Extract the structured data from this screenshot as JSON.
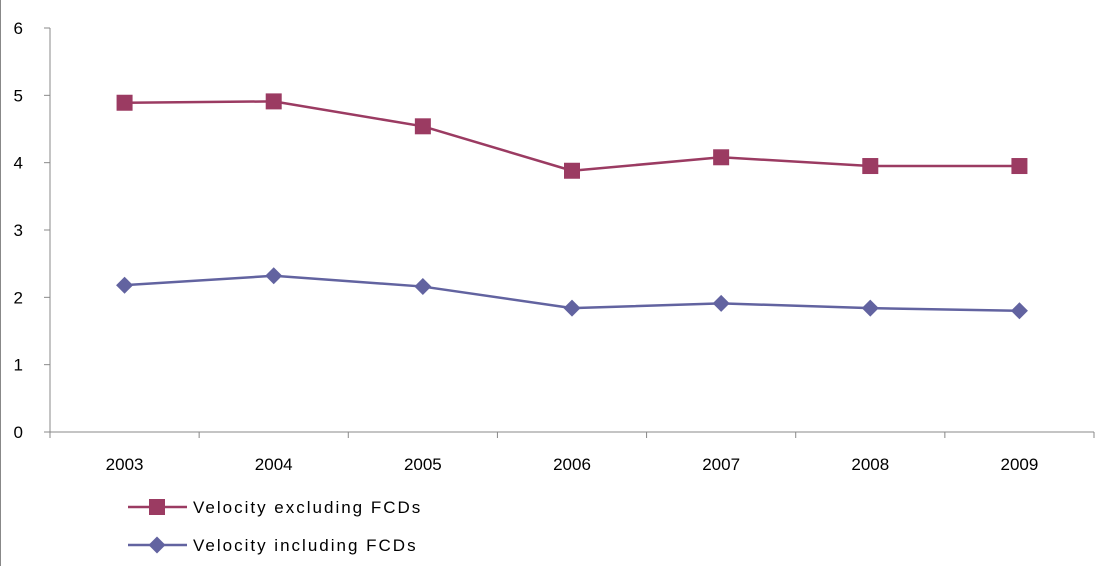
{
  "chart_data": {
    "type": "line",
    "categories": [
      "2003",
      "2004",
      "2005",
      "2006",
      "2007",
      "2008",
      "2009"
    ],
    "ylim": [
      0,
      6
    ],
    "yticks": [
      0,
      1,
      2,
      3,
      4,
      5,
      6
    ],
    "grid": false,
    "legend_position": "bottom-left",
    "series": [
      {
        "name": "Velocity excluding FCDs",
        "values": [
          4.89,
          4.91,
          4.54,
          3.88,
          4.08,
          3.95,
          3.95
        ],
        "color": "#9b3b62",
        "marker": "square"
      },
      {
        "name": "Velocity including FCDs",
        "values": [
          2.18,
          2.32,
          2.16,
          1.84,
          1.91,
          1.84,
          1.8
        ],
        "color": "#6263a0",
        "marker": "diamond"
      }
    ]
  }
}
